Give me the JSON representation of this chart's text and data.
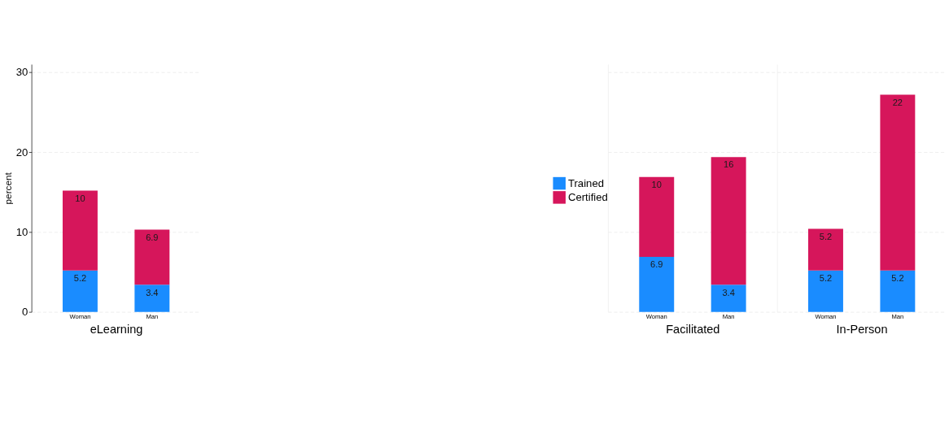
{
  "chart_data": [
    {
      "type": "bar",
      "stacked": true,
      "xlabel": "eLearning",
      "ylabel": "percent",
      "categories": [
        "Woman",
        "Man"
      ],
      "ylim": [
        0,
        31
      ],
      "yticks": [
        0,
        10,
        20,
        30
      ],
      "grid": "y",
      "data_labels": true,
      "legend": "right",
      "series": [
        {
          "name": "Trained",
          "color": "#1a8cff",
          "values": [
            5.2,
            3.4
          ]
        },
        {
          "name": "Certified",
          "color": "#d6165b",
          "values": [
            10,
            6.9
          ]
        }
      ]
    },
    {
      "type": "bar",
      "stacked": true,
      "xlabel": "Facilitated",
      "categories": [
        "Woman",
        "Man"
      ],
      "ylim": [
        0,
        31
      ],
      "yticks": [
        0,
        10,
        20,
        30
      ],
      "grid": "y",
      "data_labels": true,
      "tick_labels": "x",
      "series": [
        {
          "color": "#1a8cff",
          "values": [
            6.9,
            3.4
          ]
        },
        {
          "color": "#d6165b",
          "values": [
            10,
            16
          ]
        }
      ]
    },
    {
      "type": "bar",
      "stacked": true,
      "xlabel": "In-Person",
      "categories": [
        "Woman",
        "Man"
      ],
      "ylim": [
        0,
        31
      ],
      "yticks": [
        0,
        10,
        20,
        30
      ],
      "grid": "y",
      "data_labels": true,
      "tick_labels": "x",
      "series": [
        {
          "color": "#1a8cff",
          "values": [
            5.2,
            5.2
          ]
        },
        {
          "color": "#d6165b",
          "values": [
            5.2,
            22
          ]
        }
      ]
    }
  ]
}
